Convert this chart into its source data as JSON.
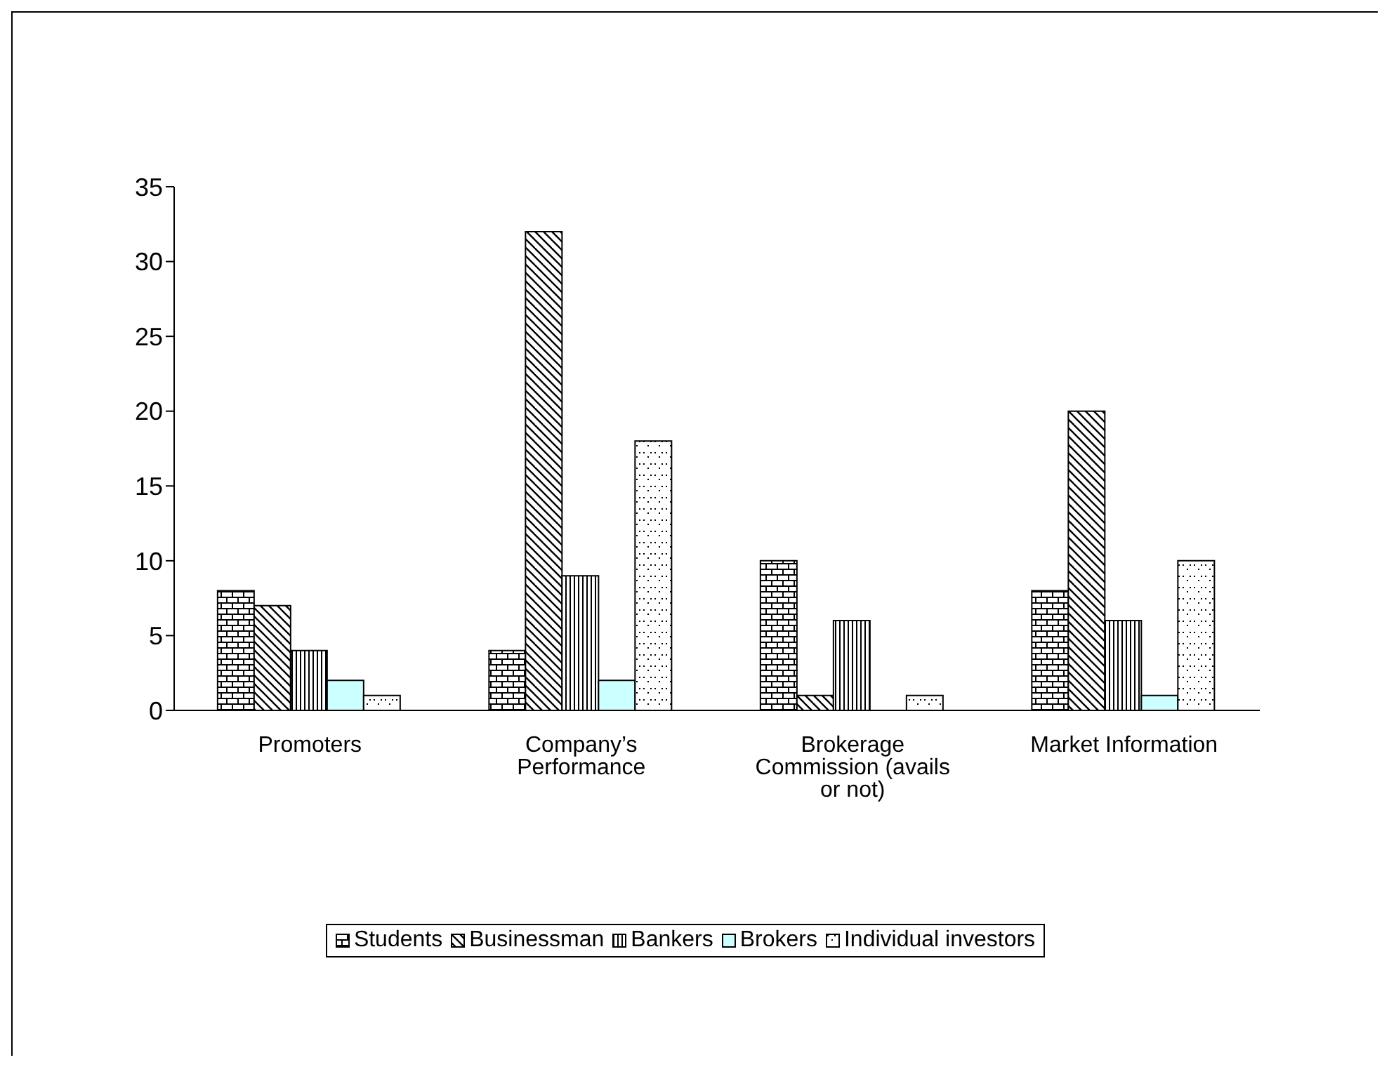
{
  "chart_data": {
    "type": "bar",
    "categories": [
      "Promoters",
      "Company’s Performance",
      "Brokerage Commission (avails or not)",
      "Market Information"
    ],
    "series": [
      {
        "name": "Students",
        "color": "#000000",
        "values": [
          8,
          4,
          10,
          8
        ]
      },
      {
        "name": "Businessman",
        "color": "#000000",
        "values": [
          7,
          32,
          1,
          20
        ]
      },
      {
        "name": "Bankers",
        "color": "#000000",
        "values": [
          4,
          9,
          6,
          6
        ]
      },
      {
        "name": "Brokers",
        "color": "#ccffff",
        "values": [
          2,
          2,
          null,
          1
        ]
      },
      {
        "name": "Individual investors",
        "color": "#000000",
        "values": [
          1,
          18,
          1,
          10
        ]
      }
    ],
    "ylim": [
      0,
      35
    ],
    "yticks": [
      0,
      5,
      10,
      15,
      20,
      25,
      30,
      35
    ],
    "grid": false,
    "legend": "bottom"
  }
}
